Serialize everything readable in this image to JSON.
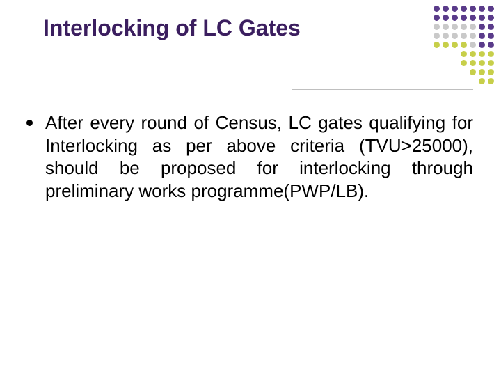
{
  "slide": {
    "title": "Interlocking of LC Gates",
    "title_color": "#3b1e5f",
    "title_fontsize": 32,
    "background_color": "#ffffff",
    "underline_color": "#bfbfbf",
    "bullets": [
      {
        "text": "After every round of Census, LC gates qualifying for Interlocking as per above criteria (TVU>25000), should be proposed for interlocking through preliminary works programme(PWP/LB)."
      }
    ],
    "bullet_text_color": "#000000",
    "bullet_fontsize": 26,
    "bullet_marker_color": "#000000",
    "decoration": {
      "type": "dot-matrix",
      "dot_size": 9,
      "dot_gap": 4,
      "colors": {
        "purple": "#5a3b8a",
        "grey": "#c9c9c9",
        "olive": "#c7cf4a"
      },
      "rows": [
        [
          "purple",
          "purple",
          "purple",
          "purple",
          "purple",
          "purple",
          "purple"
        ],
        [
          "purple",
          "purple",
          "purple",
          "purple",
          "purple",
          "purple",
          "purple"
        ],
        [
          "grey",
          "grey",
          "grey",
          "grey",
          "grey",
          "purple",
          "purple"
        ],
        [
          "grey",
          "grey",
          "grey",
          "grey",
          "grey",
          "purple",
          "purple"
        ],
        [
          "olive",
          "olive",
          "olive",
          "olive",
          "grey",
          "purple",
          "purple"
        ],
        [
          "olive",
          "olive",
          "olive",
          "olive"
        ],
        [
          "olive",
          "olive",
          "olive",
          "olive"
        ],
        [
          "olive",
          "olive",
          "olive"
        ],
        [
          "olive",
          "olive"
        ]
      ]
    }
  }
}
